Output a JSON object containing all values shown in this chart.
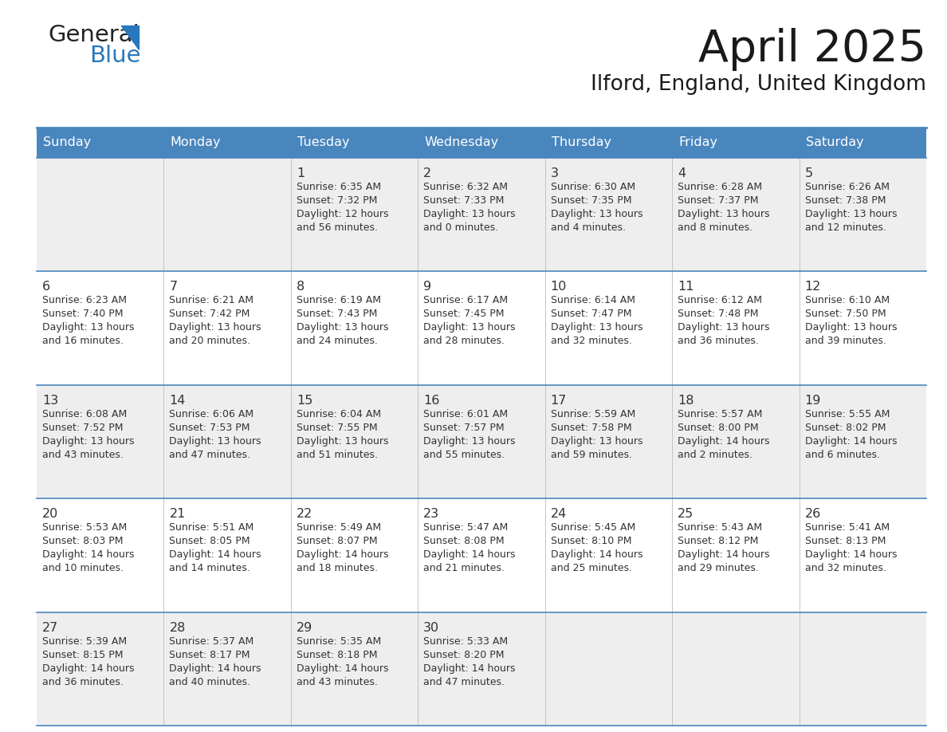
{
  "title": "April 2025",
  "subtitle": "Ilford, England, United Kingdom",
  "header_bg": "#4a86be",
  "header_text": "#ffffff",
  "row_bg_odd": "#eeeeee",
  "row_bg_even": "#ffffff",
  "cell_border_color": "#4a86be",
  "day_headers": [
    "Sunday",
    "Monday",
    "Tuesday",
    "Wednesday",
    "Thursday",
    "Friday",
    "Saturday"
  ],
  "calendar_data": [
    [
      {
        "day": "",
        "sunrise": "",
        "sunset": "",
        "daylight": ""
      },
      {
        "day": "",
        "sunrise": "",
        "sunset": "",
        "daylight": ""
      },
      {
        "day": "1",
        "sunrise": "6:35 AM",
        "sunset": "7:32 PM",
        "daylight": "12 hours\nand 56 minutes."
      },
      {
        "day": "2",
        "sunrise": "6:32 AM",
        "sunset": "7:33 PM",
        "daylight": "13 hours\nand 0 minutes."
      },
      {
        "day": "3",
        "sunrise": "6:30 AM",
        "sunset": "7:35 PM",
        "daylight": "13 hours\nand 4 minutes."
      },
      {
        "day": "4",
        "sunrise": "6:28 AM",
        "sunset": "7:37 PM",
        "daylight": "13 hours\nand 8 minutes."
      },
      {
        "day": "5",
        "sunrise": "6:26 AM",
        "sunset": "7:38 PM",
        "daylight": "13 hours\nand 12 minutes."
      }
    ],
    [
      {
        "day": "6",
        "sunrise": "6:23 AM",
        "sunset": "7:40 PM",
        "daylight": "13 hours\nand 16 minutes."
      },
      {
        "day": "7",
        "sunrise": "6:21 AM",
        "sunset": "7:42 PM",
        "daylight": "13 hours\nand 20 minutes."
      },
      {
        "day": "8",
        "sunrise": "6:19 AM",
        "sunset": "7:43 PM",
        "daylight": "13 hours\nand 24 minutes."
      },
      {
        "day": "9",
        "sunrise": "6:17 AM",
        "sunset": "7:45 PM",
        "daylight": "13 hours\nand 28 minutes."
      },
      {
        "day": "10",
        "sunrise": "6:14 AM",
        "sunset": "7:47 PM",
        "daylight": "13 hours\nand 32 minutes."
      },
      {
        "day": "11",
        "sunrise": "6:12 AM",
        "sunset": "7:48 PM",
        "daylight": "13 hours\nand 36 minutes."
      },
      {
        "day": "12",
        "sunrise": "6:10 AM",
        "sunset": "7:50 PM",
        "daylight": "13 hours\nand 39 minutes."
      }
    ],
    [
      {
        "day": "13",
        "sunrise": "6:08 AM",
        "sunset": "7:52 PM",
        "daylight": "13 hours\nand 43 minutes."
      },
      {
        "day": "14",
        "sunrise": "6:06 AM",
        "sunset": "7:53 PM",
        "daylight": "13 hours\nand 47 minutes."
      },
      {
        "day": "15",
        "sunrise": "6:04 AM",
        "sunset": "7:55 PM",
        "daylight": "13 hours\nand 51 minutes."
      },
      {
        "day": "16",
        "sunrise": "6:01 AM",
        "sunset": "7:57 PM",
        "daylight": "13 hours\nand 55 minutes."
      },
      {
        "day": "17",
        "sunrise": "5:59 AM",
        "sunset": "7:58 PM",
        "daylight": "13 hours\nand 59 minutes."
      },
      {
        "day": "18",
        "sunrise": "5:57 AM",
        "sunset": "8:00 PM",
        "daylight": "14 hours\nand 2 minutes."
      },
      {
        "day": "19",
        "sunrise": "5:55 AM",
        "sunset": "8:02 PM",
        "daylight": "14 hours\nand 6 minutes."
      }
    ],
    [
      {
        "day": "20",
        "sunrise": "5:53 AM",
        "sunset": "8:03 PM",
        "daylight": "14 hours\nand 10 minutes."
      },
      {
        "day": "21",
        "sunrise": "5:51 AM",
        "sunset": "8:05 PM",
        "daylight": "14 hours\nand 14 minutes."
      },
      {
        "day": "22",
        "sunrise": "5:49 AM",
        "sunset": "8:07 PM",
        "daylight": "14 hours\nand 18 minutes."
      },
      {
        "day": "23",
        "sunrise": "5:47 AM",
        "sunset": "8:08 PM",
        "daylight": "14 hours\nand 21 minutes."
      },
      {
        "day": "24",
        "sunrise": "5:45 AM",
        "sunset": "8:10 PM",
        "daylight": "14 hours\nand 25 minutes."
      },
      {
        "day": "25",
        "sunrise": "5:43 AM",
        "sunset": "8:12 PM",
        "daylight": "14 hours\nand 29 minutes."
      },
      {
        "day": "26",
        "sunrise": "5:41 AM",
        "sunset": "8:13 PM",
        "daylight": "14 hours\nand 32 minutes."
      }
    ],
    [
      {
        "day": "27",
        "sunrise": "5:39 AM",
        "sunset": "8:15 PM",
        "daylight": "14 hours\nand 36 minutes."
      },
      {
        "day": "28",
        "sunrise": "5:37 AM",
        "sunset": "8:17 PM",
        "daylight": "14 hours\nand 40 minutes."
      },
      {
        "day": "29",
        "sunrise": "5:35 AM",
        "sunset": "8:18 PM",
        "daylight": "14 hours\nand 43 minutes."
      },
      {
        "day": "30",
        "sunrise": "5:33 AM",
        "sunset": "8:20 PM",
        "daylight": "14 hours\nand 47 minutes."
      },
      {
        "day": "",
        "sunrise": "",
        "sunset": "",
        "daylight": ""
      },
      {
        "day": "",
        "sunrise": "",
        "sunset": "",
        "daylight": ""
      },
      {
        "day": "",
        "sunrise": "",
        "sunset": "",
        "daylight": ""
      }
    ]
  ],
  "logo_text1": "General",
  "logo_text2": "Blue",
  "logo_color1": "#222222",
  "logo_color2": "#2878be",
  "logo_triangle_color": "#2878be",
  "text_color": "#333333",
  "day_num_color": "#333333"
}
